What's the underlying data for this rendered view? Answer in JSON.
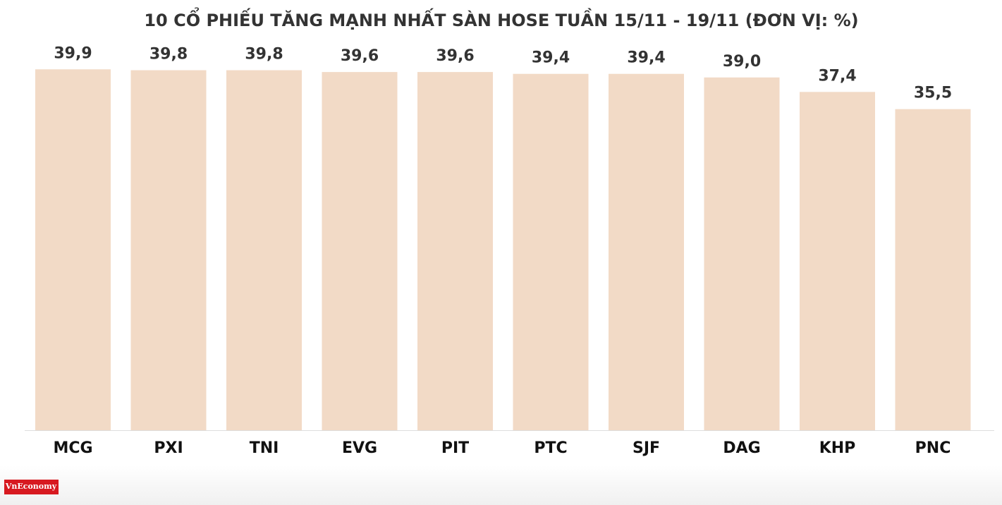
{
  "chart_data": {
    "type": "bar",
    "title": "10 CỔ PHIẾU TĂNG MẠNH NHẤT SÀN HOSE TUẦN 15/11 - 19/11 (ĐƠN VỊ: %)",
    "categories": [
      "MCG",
      "PXI",
      "TNI",
      "EVG",
      "PIT",
      "PTC",
      "SJF",
      "DAG",
      "KHP",
      "PNC"
    ],
    "values": [
      39.9,
      39.8,
      39.8,
      39.6,
      39.6,
      39.4,
      39.4,
      39.0,
      37.4,
      35.5
    ],
    "value_labels": [
      "39,9",
      "39,8",
      "39,8",
      "39,6",
      "39,6",
      "39,4",
      "39,4",
      "39,0",
      "37,4",
      "35,5"
    ],
    "color": "#f2dac6",
    "ylim": [
      0,
      40
    ],
    "grid": false
  },
  "logo": "VnEconomy"
}
